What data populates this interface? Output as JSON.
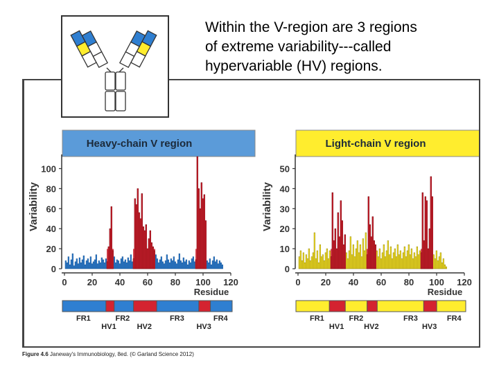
{
  "title_lines": [
    "Within the V-region are  3 regions",
    "of extreme variability---called",
    "hypervariable (HV) regions."
  ],
  "caption": {
    "figure_label": "Figure 4.6",
    "text": "Janeway's Immunobiology, 8ed. (© Garland Science 2012)"
  },
  "colors": {
    "heavy_blue": "#2f7fd1",
    "heavy_header": "#5b9bd9",
    "light_yellow": "#ffed2e",
    "hv_red": "#d42330",
    "frame_gray": "#444444"
  },
  "chart_data": [
    {
      "type": "bar",
      "title": "Heavy-chain V region",
      "ylabel": "Variability",
      "xlabel": "Residue",
      "xlim": [
        0,
        120
      ],
      "ylim": [
        0,
        110
      ],
      "xticks": [
        0,
        20,
        40,
        60,
        80,
        100,
        120
      ],
      "yticks": [
        0,
        20,
        40,
        60,
        80,
        100
      ],
      "framework_color": "#2f7fd1",
      "hv_color": "#d42330",
      "hv_ranges": [
        [
          31,
          35
        ],
        [
          50,
          65
        ],
        [
          95,
          102
        ]
      ],
      "values": [
        8,
        6,
        12,
        4,
        9,
        15,
        3,
        7,
        10,
        5,
        11,
        6,
        9,
        13,
        4,
        8,
        10,
        6,
        12,
        5,
        7,
        9,
        14,
        5,
        8,
        6,
        11,
        9,
        6,
        10,
        7,
        22,
        40,
        62,
        18,
        12,
        6,
        9,
        8,
        5,
        10,
        12,
        7,
        9,
        6,
        11,
        8,
        14,
        7,
        10,
        70,
        64,
        80,
        56,
        50,
        75,
        42,
        38,
        44,
        20,
        30,
        38,
        26,
        22,
        18,
        14,
        10,
        6,
        9,
        12,
        7,
        5,
        8,
        14,
        9,
        6,
        10,
        8,
        12,
        7,
        5,
        9,
        15,
        8,
        6,
        11,
        7,
        9,
        4,
        8,
        6,
        10,
        12,
        7,
        9,
        112,
        80,
        60,
        86,
        70,
        74,
        48,
        8,
        6,
        10,
        4,
        8,
        12,
        7,
        9,
        5,
        8,
        6,
        4
      ],
      "legend_segments": [
        {
          "label": "FR1",
          "range": [
            1,
            30
          ],
          "kind": "FR"
        },
        {
          "label": "HV1",
          "range": [
            31,
            35
          ],
          "kind": "HV"
        },
        {
          "label": "FR2",
          "range": [
            36,
            49
          ],
          "kind": "FR"
        },
        {
          "label": "HV2",
          "range": [
            50,
            65
          ],
          "kind": "HV"
        },
        {
          "label": "FR3",
          "range": [
            66,
            94
          ],
          "kind": "FR"
        },
        {
          "label": "HV3",
          "range": [
            95,
            102
          ],
          "kind": "HV"
        },
        {
          "label": "FR4",
          "range": [
            103,
            117
          ],
          "kind": "FR"
        }
      ]
    },
    {
      "type": "bar",
      "title": "Light-chain V region",
      "ylabel": "Variability",
      "xlabel": "Residue",
      "xlim": [
        0,
        120
      ],
      "ylim": [
        0,
        55
      ],
      "xticks": [
        0,
        20,
        40,
        60,
        80,
        100,
        120
      ],
      "yticks": [
        0,
        10,
        20,
        30,
        40,
        50
      ],
      "framework_color": "#ffed2e",
      "hv_color": "#d42330",
      "hv_ranges": [
        [
          24,
          34
        ],
        [
          50,
          56
        ],
        [
          89,
          97
        ]
      ],
      "values": [
        6,
        9,
        4,
        8,
        3,
        7,
        5,
        10,
        4,
        6,
        8,
        18,
        5,
        9,
        3,
        12,
        6,
        7,
        4,
        8,
        10,
        5,
        9,
        6,
        38,
        14,
        20,
        10,
        28,
        16,
        34,
        24,
        12,
        17,
        8,
        5,
        9,
        16,
        7,
        12,
        6,
        10,
        14,
        8,
        12,
        6,
        15,
        9,
        18,
        7,
        36,
        22,
        16,
        26,
        14,
        12,
        9,
        6,
        10,
        5,
        8,
        12,
        6,
        9,
        14,
        7,
        11,
        5,
        8,
        10,
        6,
        12,
        7,
        9,
        5,
        8,
        11,
        6,
        9,
        12,
        7,
        10,
        5,
        8,
        6,
        11,
        7,
        9,
        8,
        38,
        14,
        36,
        34,
        10,
        20,
        46,
        36,
        7,
        5,
        9,
        4,
        6,
        8,
        3,
        5,
        2,
        1
      ]
    }
  ]
}
